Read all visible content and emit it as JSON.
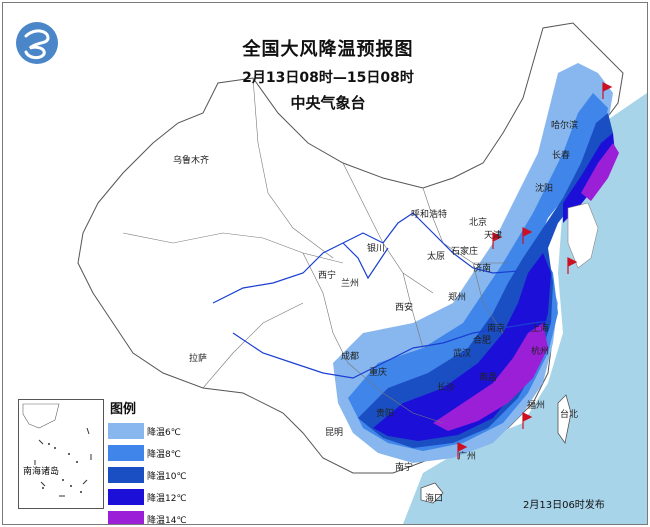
{
  "map": {
    "title": "全国大风降温预报图",
    "subtitle": "2月13日08时—15日08时",
    "agency": "中央气象台",
    "publish_time": "2月13日06时发布",
    "inset_label": "南海诸岛",
    "colors": {
      "sea": "#a8d4ea",
      "land": "#ffffff",
      "border": "#555555",
      "river": "#1a3fd1",
      "wind_flag": "#cc1122"
    },
    "legend": {
      "title": "图例",
      "items": [
        {
          "label": "降温6℃",
          "color": "#87b7ee"
        },
        {
          "label": "降温8℃",
          "color": "#3f85ea"
        },
        {
          "label": "降温10℃",
          "color": "#1a4fc4"
        },
        {
          "label": "降温12℃",
          "color": "#1c10d8"
        },
        {
          "label": "降温14℃",
          "color": "#9a1fd6"
        }
      ]
    },
    "cities": [
      "乌鲁木齐",
      "哈尔滨",
      "长春",
      "沈阳",
      "呼和浩特",
      "北京",
      "天津",
      "银川",
      "太原",
      "石家庄",
      "西宁",
      "兰州",
      "济南",
      "郑州",
      "西安",
      "南京",
      "合肥",
      "上海",
      "武汉",
      "杭州",
      "成都",
      "重庆",
      "拉萨",
      "长沙",
      "南昌",
      "贵阳",
      "福州",
      "台北",
      "昆明",
      "南宁",
      "广州",
      "海口"
    ],
    "logo_icon": "cma-logo-icon",
    "wind_icon": "wind-flag-icon"
  }
}
